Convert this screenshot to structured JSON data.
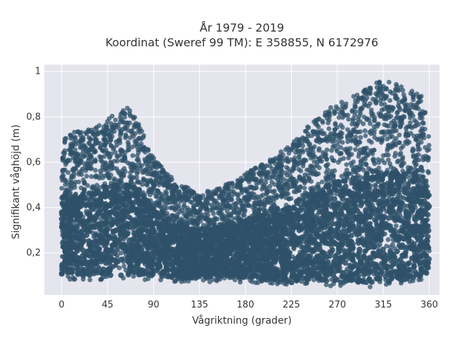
{
  "chart_data": {
    "type": "scatter",
    "title": "År 1979 - 2019",
    "subtitle": "Koordinat (Sweref 99 TM): E 358855, N 6172976",
    "xlabel": "Vågriktning (grader)",
    "ylabel": "Signifikant våghöjd (m)",
    "xlim": [
      -17,
      370
    ],
    "ylim": [
      0.015,
      1.03
    ],
    "x_ticks": [
      0,
      45,
      90,
      135,
      180,
      225,
      270,
      315,
      360
    ],
    "x_tick_labels": [
      "0",
      "45",
      "90",
      "135",
      "180",
      "225",
      "270",
      "315",
      "360"
    ],
    "y_ticks": [
      0.2,
      0.4,
      0.6,
      0.8,
      1.0
    ],
    "y_tick_labels": [
      "0,2",
      "0,4",
      "0,6",
      "0,8",
      "1"
    ],
    "grid": true,
    "legend": "none",
    "marker_color": "#2f5169",
    "plot_bg": "#e5e5ee",
    "envelope": {
      "x": [
        0,
        20,
        40,
        55,
        65,
        75,
        90,
        110,
        135,
        160,
        180,
        200,
        225,
        250,
        270,
        290,
        305,
        315,
        325,
        335,
        345,
        355,
        360
      ],
      "y_max": [
        0.72,
        0.74,
        0.78,
        0.82,
        0.84,
        0.78,
        0.62,
        0.52,
        0.46,
        0.5,
        0.55,
        0.6,
        0.68,
        0.8,
        0.86,
        0.9,
        0.95,
        0.96,
        0.95,
        0.94,
        0.92,
        0.88,
        0.7
      ],
      "y_min": [
        0.08,
        0.08,
        0.08,
        0.08,
        0.08,
        0.08,
        0.08,
        0.07,
        0.07,
        0.07,
        0.07,
        0.06,
        0.06,
        0.06,
        0.05,
        0.05,
        0.05,
        0.05,
        0.05,
        0.06,
        0.07,
        0.08,
        0.1
      ]
    }
  }
}
